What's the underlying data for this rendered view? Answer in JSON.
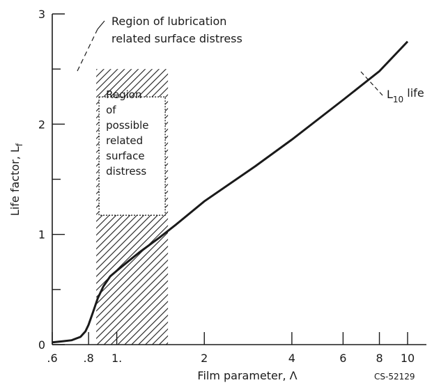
{
  "chart_data": {
    "type": "line",
    "xscale": "log",
    "xlim": [
      0.6,
      10
    ],
    "ylim": [
      0,
      3
    ],
    "grid": false,
    "xlabel": "Film parameter, Λ",
    "ylabel": "Life factor, L",
    "ylabel_sub": "f",
    "x_ticks": [
      0.6,
      0.8,
      1,
      2,
      4,
      6,
      8,
      10
    ],
    "x_tick_labels": [
      ".6",
      ".8",
      "1.",
      "2",
      "4",
      "6",
      "8",
      "10"
    ],
    "y_ticks": [
      0,
      0.5,
      1,
      1.5,
      2,
      2.5,
      3
    ],
    "y_tick_labels": [
      "0",
      "",
      "1",
      "",
      "2",
      "",
      "3"
    ],
    "series": [
      {
        "x": [
          0.6,
          0.65,
          0.7,
          0.75,
          0.78,
          0.8,
          0.83,
          0.86,
          0.9,
          0.95,
          1.0,
          1.1,
          1.2,
          1.4,
          1.6,
          2,
          3,
          4,
          6,
          8,
          10
        ],
        "y": [
          0.02,
          0.03,
          0.04,
          0.07,
          0.12,
          0.18,
          0.3,
          0.42,
          0.53,
          0.62,
          0.67,
          0.76,
          0.84,
          0.97,
          1.09,
          1.3,
          1.62,
          1.86,
          2.22,
          2.48,
          2.75
        ]
      }
    ],
    "annotations": {
      "curve_label_main": "L",
      "curve_label_sub": "10",
      "curve_label_suffix": " life",
      "lubrication_region": [
        "Region of lubrication",
        "related surface distress"
      ],
      "possible_region": [
        "Region",
        "of",
        "possible",
        "related",
        "surface",
        "distress"
      ],
      "possible_region_x": [
        0.85,
        1.5
      ],
      "possible_region_y_top": 2.5,
      "figure_code": "CS-52129"
    }
  }
}
